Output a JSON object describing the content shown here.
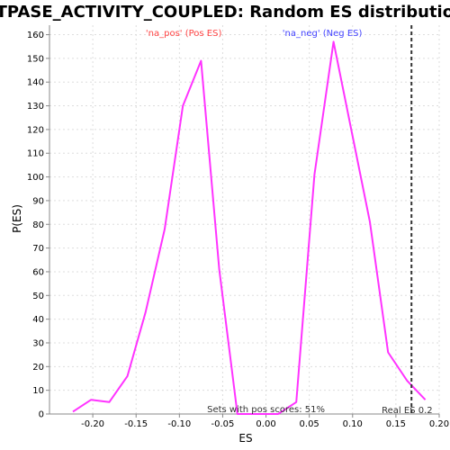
{
  "chart_data": {
    "type": "line",
    "title": "ATPASE_ACTIVITY_COUPLED: Random ES distribution",
    "xlabel": "ES",
    "ylabel": "P(ES)",
    "xlim": [
      -0.25,
      0.2
    ],
    "ylim": [
      0,
      164
    ],
    "x_ticks": [
      -0.2,
      -0.15,
      -0.1,
      -0.05,
      0.0,
      0.05,
      0.1,
      0.15,
      0.2
    ],
    "x_tick_labels": [
      "-0.20",
      "-0.15",
      "-0.10",
      "-0.05",
      "0.00",
      "0.05",
      "0.10",
      "0.15",
      "0.20"
    ],
    "y_ticks": [
      0,
      10,
      20,
      30,
      40,
      50,
      60,
      70,
      80,
      90,
      100,
      110,
      120,
      130,
      140,
      150,
      160
    ],
    "grid": true,
    "series": [
      {
        "color": "#ff33ff",
        "x": [
          -0.223,
          -0.202,
          -0.181,
          -0.16,
          -0.139,
          -0.117,
          -0.096,
          -0.075,
          -0.054,
          -0.033,
          -0.012,
          0.014,
          0.035,
          0.056,
          0.078,
          0.099,
          0.12,
          0.141,
          0.163,
          0.184
        ],
        "y": [
          1,
          6,
          5,
          16,
          43,
          78,
          130,
          149,
          61,
          0,
          0,
          0,
          5,
          101,
          157,
          119,
          81,
          26,
          14,
          6
        ]
      }
    ],
    "real_es": 0.168,
    "annotations": {
      "pos_label": "'na_pos' (Pos ES)",
      "pos_color": "#ff4444",
      "neg_label": "'na_neg' (Neg ES)",
      "neg_color": "#4444ff",
      "sets_with_pos": "Sets with pos scores: 51%",
      "real_es_label": "Real ES 0.2"
    }
  }
}
